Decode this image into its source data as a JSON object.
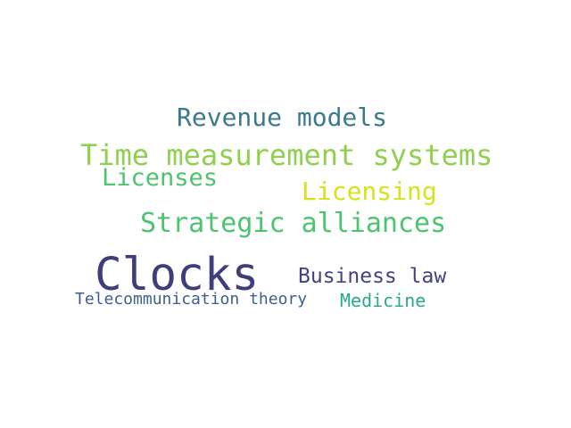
{
  "words": [
    {
      "text": "Revenue models",
      "color": "#3a7a8c"
    },
    {
      "text": "Time measurement systems",
      "color": "#8fd14f"
    },
    {
      "text": "Licenses",
      "color": "#4fc36b"
    },
    {
      "text": "Licensing",
      "color": "#d8e21c"
    },
    {
      "text": "Strategic alliances",
      "color": "#4cc46f"
    },
    {
      "text": "Clocks",
      "color": "#3f3d7a"
    },
    {
      "text": "Business law",
      "color": "#46427f"
    },
    {
      "text": "Telecommunication theory",
      "color": "#3e5e8c"
    },
    {
      "text": "Medicine",
      "color": "#2aa88a"
    }
  ]
}
